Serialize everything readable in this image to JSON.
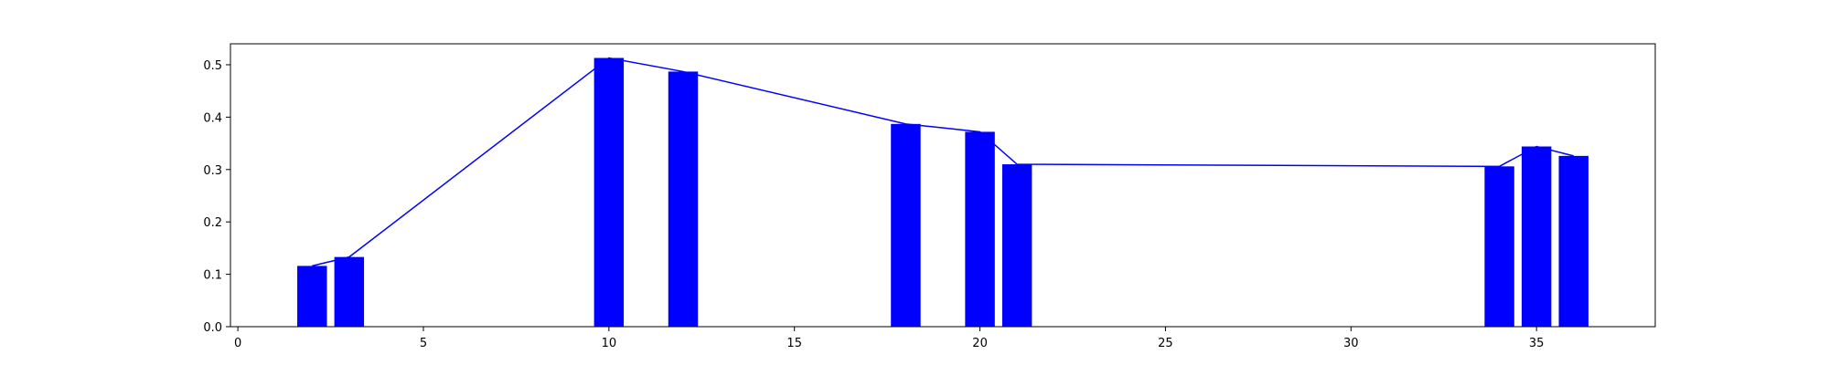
{
  "chart_data": {
    "type": "bar",
    "title": "",
    "xlabel": "",
    "ylabel": "",
    "xlim": [
      -0.2,
      38.2
    ],
    "ylim": [
      0,
      0.54
    ],
    "x_ticks": [
      0,
      5,
      10,
      15,
      20,
      25,
      30,
      35
    ],
    "y_ticks": [
      0.0,
      0.1,
      0.2,
      0.3,
      0.4,
      0.5
    ],
    "y_tick_format": 1,
    "grid": false,
    "bar_color": "#0000ff",
    "line_color": "#0000ff",
    "bar_width": 0.8,
    "x": [
      2,
      3,
      10,
      12,
      18,
      20,
      21,
      34,
      35,
      36
    ],
    "values": [
      0.116,
      0.133,
      0.513,
      0.487,
      0.387,
      0.372,
      0.31,
      0.306,
      0.344,
      0.326
    ],
    "overlay_line": true
  }
}
